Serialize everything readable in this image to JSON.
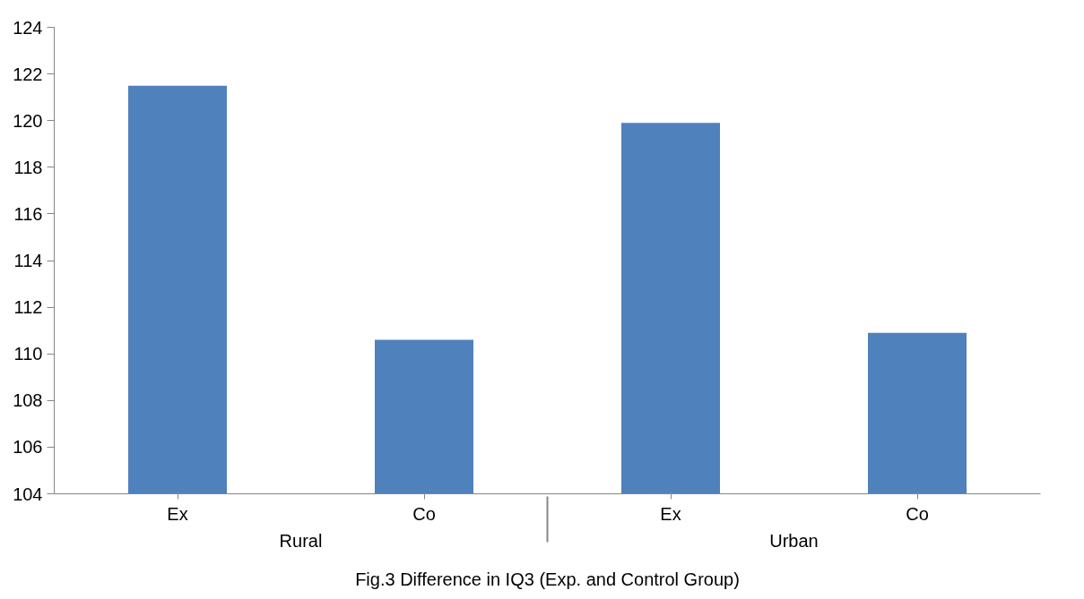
{
  "chart_data": {
    "type": "bar",
    "xlabel": "Fig.3 Difference in IQ3 (Exp. and Control Group)",
    "categories": [
      "Ex",
      "Co",
      "Ex",
      "Co"
    ],
    "annotations": [
      "Rural",
      "Urban"
    ],
    "values": [
      121.5,
      110.6,
      119.9,
      110.9
    ],
    "color": "#4f81bd",
    "ylim": [
      104,
      124
    ],
    "yticks": [
      104,
      106,
      108,
      110,
      112,
      114,
      116,
      118,
      120,
      122,
      124
    ],
    "grid": false
  }
}
